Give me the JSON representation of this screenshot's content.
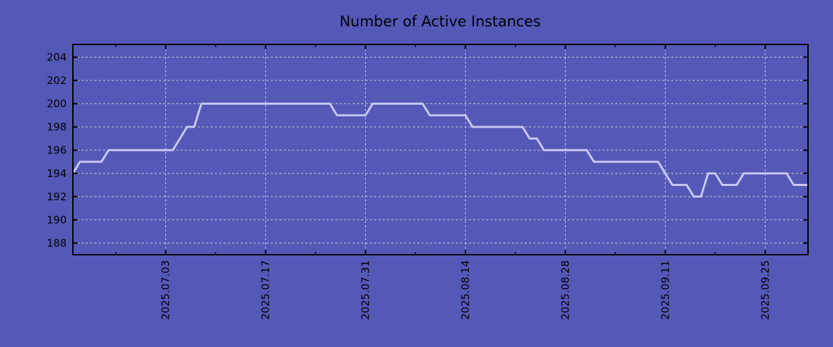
{
  "chart_data": {
    "type": "line",
    "title": "Number of Active Instances",
    "xlabel": "",
    "ylabel": "",
    "grid": true,
    "legend": "none",
    "ylim": [
      187.0,
      205.1
    ],
    "y_ticks": [
      188,
      190,
      192,
      194,
      196,
      198,
      200,
      202,
      204
    ],
    "x_major_ticks": [
      "2025.07.03",
      "2025.07.17",
      "2025.07.31",
      "2025.08.14",
      "2025.08.28",
      "2025.09.11",
      "2025.09.25"
    ],
    "x_minor_ticks": [
      "2025.06.26",
      "2025.07.10",
      "2025.07.24",
      "2025.08.07",
      "2025.08.21",
      "2025.09.04",
      "2025.09.18"
    ],
    "series": [
      {
        "name": "active_instances",
        "dates": [
          "2025.06.20",
          "2025.06.21",
          "2025.06.22",
          "2025.06.23",
          "2025.06.24",
          "2025.06.25",
          "2025.06.26",
          "2025.06.27",
          "2025.06.28",
          "2025.06.29",
          "2025.06.30",
          "2025.07.01",
          "2025.07.02",
          "2025.07.03",
          "2025.07.04",
          "2025.07.05",
          "2025.07.06",
          "2025.07.07",
          "2025.07.08",
          "2025.07.09",
          "2025.07.10",
          "2025.07.11",
          "2025.07.12",
          "2025.07.13",
          "2025.07.14",
          "2025.07.15",
          "2025.07.16",
          "2025.07.17",
          "2025.07.18",
          "2025.07.19",
          "2025.07.20",
          "2025.07.21",
          "2025.07.22",
          "2025.07.23",
          "2025.07.24",
          "2025.07.25",
          "2025.07.26",
          "2025.07.27",
          "2025.07.28",
          "2025.07.29",
          "2025.07.30",
          "2025.07.31",
          "2025.08.01",
          "2025.08.02",
          "2025.08.03",
          "2025.08.04",
          "2025.08.05",
          "2025.08.06",
          "2025.08.07",
          "2025.08.08",
          "2025.08.09",
          "2025.08.10",
          "2025.08.11",
          "2025.08.12",
          "2025.08.13",
          "2025.08.14",
          "2025.08.15",
          "2025.08.16",
          "2025.08.17",
          "2025.08.18",
          "2025.08.19",
          "2025.08.20",
          "2025.08.21",
          "2025.08.22",
          "2025.08.23",
          "2025.08.24",
          "2025.08.25",
          "2025.08.26",
          "2025.08.27",
          "2025.08.28",
          "2025.08.29",
          "2025.08.30",
          "2025.08.31",
          "2025.09.01",
          "2025.09.02",
          "2025.09.03",
          "2025.09.04",
          "2025.09.05",
          "2025.09.06",
          "2025.09.07",
          "2025.09.08",
          "2025.09.09",
          "2025.09.10",
          "2025.09.11",
          "2025.09.12",
          "2025.09.13",
          "2025.09.14",
          "2025.09.15",
          "2025.09.16",
          "2025.09.17",
          "2025.09.18",
          "2025.09.19",
          "2025.09.20",
          "2025.09.21",
          "2025.09.22",
          "2025.09.23",
          "2025.09.24",
          "2025.09.25",
          "2025.09.26",
          "2025.09.27",
          "2025.09.28",
          "2025.09.29",
          "2025.09.30",
          "2025.10.01"
        ],
        "values": [
          194,
          195,
          195,
          195,
          195,
          196,
          196,
          196,
          196,
          196,
          196,
          196,
          196,
          196,
          196,
          197,
          198,
          198,
          200,
          200,
          200,
          200,
          200,
          200,
          200,
          200,
          200,
          200,
          200,
          200,
          200,
          200,
          200,
          200,
          200,
          200,
          200,
          199,
          199,
          199,
          199,
          199,
          200,
          200,
          200,
          200,
          200,
          200,
          200,
          200,
          199,
          199,
          199,
          199,
          199,
          199,
          198,
          198,
          198,
          198,
          198,
          198,
          198,
          198,
          197,
          197,
          196,
          196,
          196,
          196,
          196,
          196,
          196,
          195,
          195,
          195,
          195,
          195,
          195,
          195,
          195,
          195,
          195,
          194,
          193,
          193,
          193,
          192,
          192,
          194,
          194,
          193,
          193,
          193,
          194,
          194,
          194,
          194,
          194,
          194,
          194,
          193,
          193,
          193
        ]
      }
    ],
    "colors": {
      "background": "#5459b8",
      "line": "#c7c9f2",
      "grid": "#d0d0c8",
      "frame": "#000000",
      "text": "#000000"
    }
  }
}
